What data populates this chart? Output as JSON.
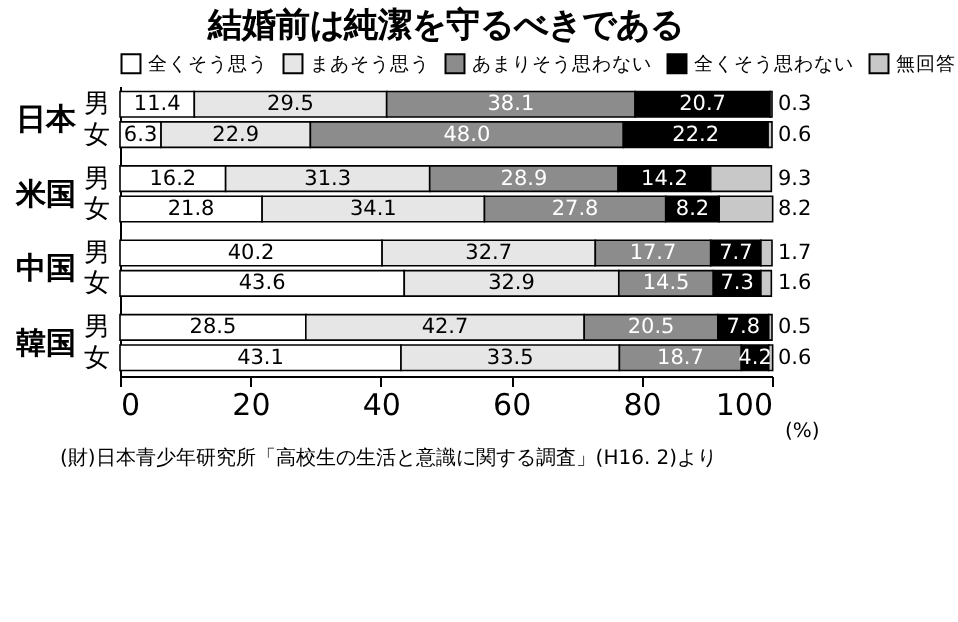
{
  "chart_data": {
    "type": "bar",
    "orientation": "horizontal",
    "stacked": true,
    "title": "結婚前は純潔を守るべきである",
    "categories": [
      "男",
      "女",
      "男",
      "女",
      "男",
      "女",
      "男",
      "女"
    ],
    "series": [
      {
        "name": "全くそう思う",
        "color": "#ffffff",
        "values": [
          11.4,
          6.3,
          16.2,
          21.8,
          40.2,
          43.6,
          28.5,
          43.1
        ],
        "value_labels": [
          "11.4",
          "6.3",
          "16.2",
          "21.8",
          "40.2",
          "43.6",
          "28.5",
          "43.1"
        ]
      },
      {
        "name": "まあそう思う",
        "color": "#e6e6e6",
        "values": [
          29.5,
          22.9,
          31.3,
          34.1,
          32.7,
          32.9,
          42.7,
          33.5
        ],
        "value_labels": [
          "29.5",
          "22.9",
          "31.3",
          "34.1",
          "32.7",
          "32.9",
          "42.7",
          "33.5"
        ]
      },
      {
        "name": "あまりそう思わない",
        "color": "#8c8c8c",
        "values": [
          38.1,
          48.0,
          28.9,
          27.8,
          17.7,
          14.5,
          20.5,
          18.7
        ],
        "value_labels": [
          "38.1",
          "48.0",
          "28.9",
          "27.8",
          "17.7",
          "14.5",
          "20.5",
          "18.7"
        ]
      },
      {
        "name": "全くそう思わない",
        "color": "#000000",
        "values": [
          20.7,
          22.2,
          14.2,
          8.2,
          7.7,
          7.3,
          7.8,
          4.2
        ],
        "value_labels": [
          "20.7",
          "22.2",
          "14.2",
          "8.2",
          "7.7",
          "7.3",
          "7.8",
          "4.2"
        ]
      },
      {
        "name": "無回答",
        "color": "#c8c8c8",
        "values": [
          0.3,
          0.6,
          9.3,
          8.2,
          1.7,
          1.6,
          0.5,
          0.6
        ],
        "value_labels": [
          "0.3",
          "0.6",
          "9.3",
          "8.2",
          "1.7",
          "1.6",
          "0.5",
          "0.6"
        ]
      }
    ],
    "xlim": [
      0,
      100
    ],
    "xticks": [
      0,
      20,
      40,
      60,
      80,
      100
    ],
    "xlabel": "(%)",
    "legend": "top",
    "annotations": [
      "日本",
      "米国",
      "中国",
      "韓国",
      "(財)日本青少年研究所「高校生の生活と意識に関する調査」(H16. 2)より"
    ]
  }
}
